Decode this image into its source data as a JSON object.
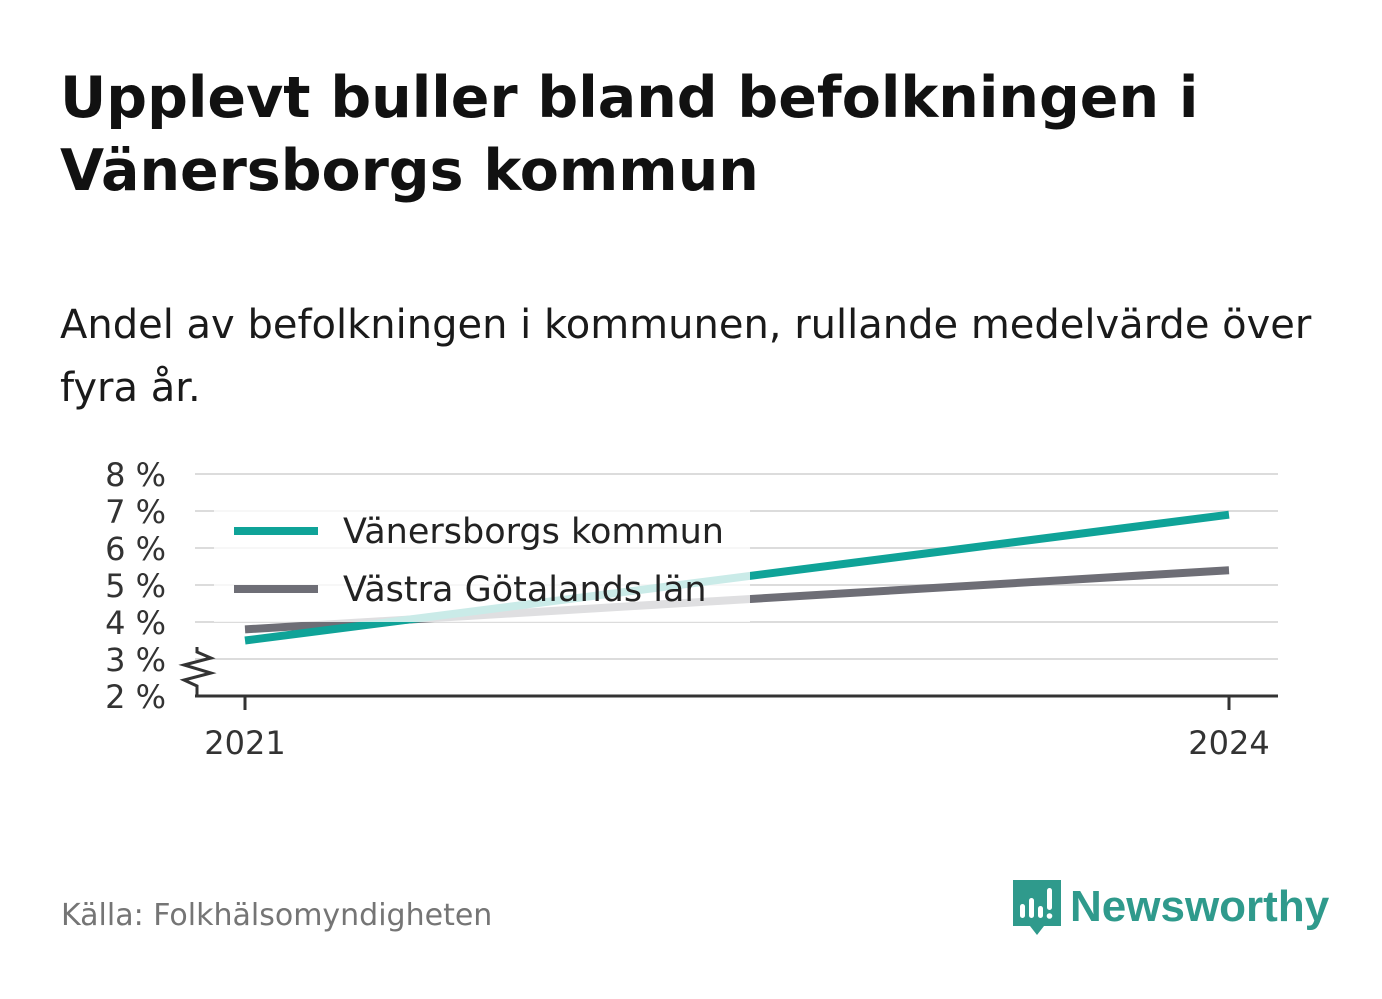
{
  "chart_data": {
    "type": "line",
    "title": "Upplevt buller bland befolkningen i Vänersborgs kommun",
    "subtitle": "Andel av befolkningen i kommunen, rullande medelvärde över fyra år.",
    "x": [
      2021,
      2024
    ],
    "x_tick_labels": [
      "2021",
      "2024"
    ],
    "y_tick_labels": [
      "8 %",
      "7 %",
      "6 %",
      "5 %",
      "4 %",
      "3 %",
      "2 %"
    ],
    "y_ticks": [
      8,
      7,
      6,
      5,
      4,
      3,
      2
    ],
    "ylim": [
      2,
      8
    ],
    "y_axis_break": true,
    "grid": true,
    "legend_position": "top-left",
    "series": [
      {
        "name": "Vänersborgs kommun",
        "color": "#0fa398",
        "values": [
          3.5,
          6.9
        ]
      },
      {
        "name": "Västra Götalands län",
        "color": "#6e6e76",
        "values": [
          3.8,
          5.4
        ]
      }
    ]
  },
  "footer": {
    "source": "Källa: Folkhälsomyndigheten",
    "brand": "Newsworthy",
    "brand_color": "#2f9a8c",
    "brand_icon": "bar-chart-speech-bubble-icon"
  }
}
